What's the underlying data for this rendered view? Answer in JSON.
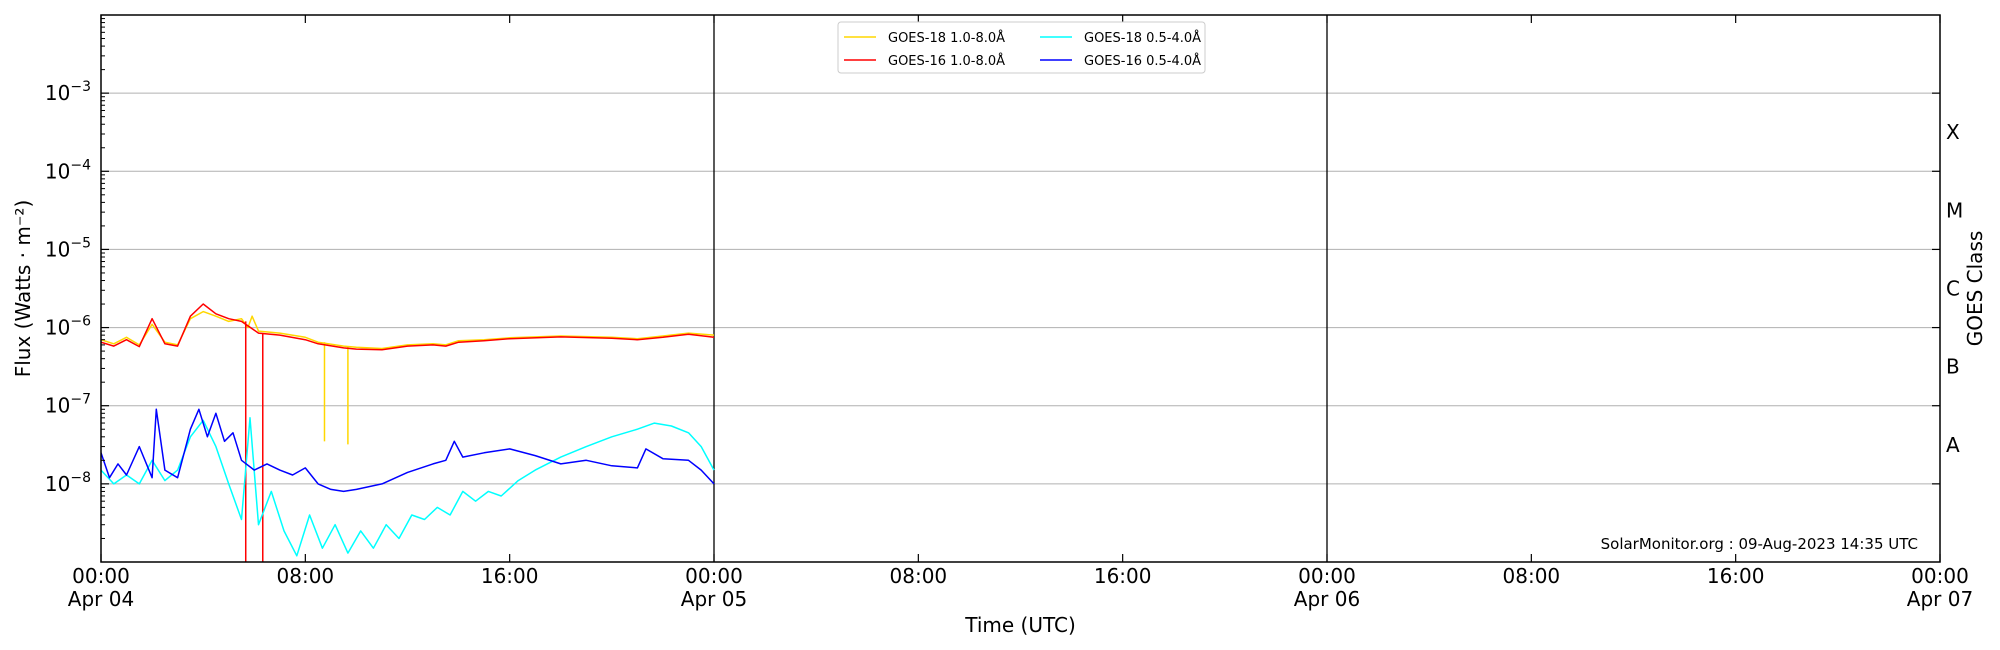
{
  "chart_data": {
    "type": "line",
    "xlabel": "Time (UTC)",
    "ylabel": "Flux (Watts · m⁻²)",
    "right_ylabel": "GOES Class",
    "yscale": "log",
    "ylim": [
      1e-09,
      0.01
    ],
    "xlim": [
      "2023-04-04 00:00",
      "2023-04-07 00:00"
    ],
    "grid": "horizontal",
    "legend_position": "top-center",
    "x_ticks": [
      {
        "time": "2023-04-04 00:00",
        "label": "00:00",
        "sublabel": "Apr 04"
      },
      {
        "time": "2023-04-04 08:00",
        "label": "08:00",
        "sublabel": ""
      },
      {
        "time": "2023-04-04 16:00",
        "label": "16:00",
        "sublabel": ""
      },
      {
        "time": "2023-04-05 00:00",
        "label": "00:00",
        "sublabel": "Apr 05"
      },
      {
        "time": "2023-04-05 08:00",
        "label": "08:00",
        "sublabel": ""
      },
      {
        "time": "2023-04-05 16:00",
        "label": "16:00",
        "sublabel": ""
      },
      {
        "time": "2023-04-06 00:00",
        "label": "00:00",
        "sublabel": "Apr 06"
      },
      {
        "time": "2023-04-06 08:00",
        "label": "08:00",
        "sublabel": ""
      },
      {
        "time": "2023-04-06 16:00",
        "label": "16:00",
        "sublabel": ""
      },
      {
        "time": "2023-04-07 00:00",
        "label": "00:00",
        "sublabel": "Apr 07"
      }
    ],
    "y_ticks": [
      {
        "value": 1e-08,
        "label": "10",
        "exp": "−8"
      },
      {
        "value": 1e-07,
        "label": "10",
        "exp": "−7"
      },
      {
        "value": 1e-06,
        "label": "10",
        "exp": "−6"
      },
      {
        "value": 1e-05,
        "label": "10",
        "exp": "−5"
      },
      {
        "value": 0.0001,
        "label": "10",
        "exp": "−4"
      },
      {
        "value": 0.001,
        "label": "10",
        "exp": "−3"
      }
    ],
    "goes_classes": [
      {
        "label": "A",
        "value": 3.16e-08
      },
      {
        "label": "B",
        "value": 3.16e-07
      },
      {
        "label": "C",
        "value": 3.16e-06
      },
      {
        "label": "M",
        "value": 3.16e-05
      },
      {
        "label": "X",
        "value": 0.000316
      }
    ],
    "day_boundaries": [
      "2023-04-05 00:00",
      "2023-04-06 00:00"
    ],
    "credit": "SolarMonitor.org : 09-Aug-2023 14:35 UTC",
    "series": [
      {
        "name": "GOES-18 1.0-8.0Å",
        "color": "#ffd700",
        "points": [
          [
            "2023-04-04 00:00",
            7e-07
          ],
          [
            "2023-04-04 00:30",
            6.2e-07
          ],
          [
            "2023-04-04 01:00",
            7.5e-07
          ],
          [
            "2023-04-04 01:30",
            6e-07
          ],
          [
            "2023-04-04 02:00",
            1.1e-06
          ],
          [
            "2023-04-04 02:30",
            6.5e-07
          ],
          [
            "2023-04-04 03:00",
            6e-07
          ],
          [
            "2023-04-04 03:30",
            1.3e-06
          ],
          [
            "2023-04-04 04:00",
            1.6e-06
          ],
          [
            "2023-04-04 04:30",
            1.4e-06
          ],
          [
            "2023-04-04 05:00",
            1.2e-06
          ],
          [
            "2023-04-04 05:30",
            1.3e-06
          ],
          [
            "2023-04-04 05:45",
            1e-06
          ],
          [
            "2023-04-04 05:55",
            1.4e-06
          ],
          [
            "2023-04-04 06:10",
            9e-07
          ],
          [
            "2023-04-04 07:00",
            8.5e-07
          ],
          [
            "2023-04-04 08:00",
            7.5e-07
          ],
          [
            "2023-04-04 08:30",
            6.5e-07
          ],
          [
            "2023-04-04 09:30",
            5.8e-07
          ],
          [
            "2023-04-04 10:00",
            5.6e-07
          ],
          [
            "2023-04-04 11:00",
            5.4e-07
          ],
          [
            "2023-04-04 12:00",
            6e-07
          ],
          [
            "2023-04-04 13:00",
            6.2e-07
          ],
          [
            "2023-04-04 13:30",
            6e-07
          ],
          [
            "2023-04-04 14:00",
            6.8e-07
          ],
          [
            "2023-04-04 15:00",
            7e-07
          ],
          [
            "2023-04-04 16:00",
            7.4e-07
          ],
          [
            "2023-04-04 18:00",
            7.8e-07
          ],
          [
            "2023-04-04 20:00",
            7.5e-07
          ],
          [
            "2023-04-04 21:00",
            7.2e-07
          ],
          [
            "2023-04-04 22:00",
            7.8e-07
          ],
          [
            "2023-04-04 23:00",
            8.5e-07
          ],
          [
            "2023-04-05 00:00",
            8e-07
          ]
        ],
        "dips": [
          [
            "2023-04-04 08:45",
            3.5e-08
          ],
          [
            "2023-04-04 09:40",
            3.2e-08
          ]
        ]
      },
      {
        "name": "GOES-16 1.0-8.0Å",
        "color": "#ff0000",
        "points": [
          [
            "2023-04-04 00:00",
            6.5e-07
          ],
          [
            "2023-04-04 00:30",
            5.8e-07
          ],
          [
            "2023-04-04 01:00",
            7e-07
          ],
          [
            "2023-04-04 01:30",
            5.7e-07
          ],
          [
            "2023-04-04 02:00",
            1.3e-06
          ],
          [
            "2023-04-04 02:30",
            6.2e-07
          ],
          [
            "2023-04-04 03:00",
            5.8e-07
          ],
          [
            "2023-04-04 03:30",
            1.4e-06
          ],
          [
            "2023-04-04 04:00",
            2e-06
          ],
          [
            "2023-04-04 04:30",
            1.5e-06
          ],
          [
            "2023-04-04 05:00",
            1.3e-06
          ],
          [
            "2023-04-04 05:30",
            1.2e-06
          ],
          [
            "2023-04-04 06:10",
            8.5e-07
          ],
          [
            "2023-04-04 07:00",
            8e-07
          ],
          [
            "2023-04-04 08:00",
            7e-07
          ],
          [
            "2023-04-04 08:30",
            6.2e-07
          ],
          [
            "2023-04-04 09:30",
            5.5e-07
          ],
          [
            "2023-04-04 10:00",
            5.3e-07
          ],
          [
            "2023-04-04 11:00",
            5.2e-07
          ],
          [
            "2023-04-04 12:00",
            5.8e-07
          ],
          [
            "2023-04-04 13:00",
            6e-07
          ],
          [
            "2023-04-04 13:30",
            5.8e-07
          ],
          [
            "2023-04-04 14:00",
            6.5e-07
          ],
          [
            "2023-04-04 15:00",
            6.8e-07
          ],
          [
            "2023-04-04 16:00",
            7.2e-07
          ],
          [
            "2023-04-04 18:00",
            7.6e-07
          ],
          [
            "2023-04-04 20:00",
            7.3e-07
          ],
          [
            "2023-04-04 21:00",
            7e-07
          ],
          [
            "2023-04-04 22:00",
            7.5e-07
          ],
          [
            "2023-04-04 23:00",
            8.2e-07
          ],
          [
            "2023-04-05 00:00",
            7.5e-07
          ]
        ],
        "dips": [
          [
            "2023-04-04 05:40",
            1e-09
          ],
          [
            "2023-04-04 06:20",
            1e-09
          ]
        ]
      },
      {
        "name": "GOES-18 0.5-4.0Å",
        "color": "#00ffff",
        "points": [
          [
            "2023-04-04 00:00",
            1.5e-08
          ],
          [
            "2023-04-04 00:30",
            1e-08
          ],
          [
            "2023-04-04 01:00",
            1.3e-08
          ],
          [
            "2023-04-04 01:30",
            1e-08
          ],
          [
            "2023-04-04 02:00",
            2e-08
          ],
          [
            "2023-04-04 02:30",
            1.1e-08
          ],
          [
            "2023-04-04 03:00",
            1.5e-08
          ],
          [
            "2023-04-04 03:30",
            4e-08
          ],
          [
            "2023-04-04 04:00",
            6.5e-08
          ],
          [
            "2023-04-04 04:30",
            3e-08
          ],
          [
            "2023-04-04 05:00",
            1e-08
          ],
          [
            "2023-04-04 05:30",
            3.5e-09
          ],
          [
            "2023-04-04 05:50",
            7e-08
          ],
          [
            "2023-04-04 06:10",
            3e-09
          ],
          [
            "2023-04-04 06:40",
            8e-09
          ],
          [
            "2023-04-04 07:10",
            2.5e-09
          ],
          [
            "2023-04-04 07:40",
            1.2e-09
          ],
          [
            "2023-04-04 08:10",
            4e-09
          ],
          [
            "2023-04-04 08:40",
            1.5e-09
          ],
          [
            "2023-04-04 09:10",
            3e-09
          ],
          [
            "2023-04-04 09:40",
            1.3e-09
          ],
          [
            "2023-04-04 10:10",
            2.5e-09
          ],
          [
            "2023-04-04 10:40",
            1.5e-09
          ],
          [
            "2023-04-04 11:10",
            3e-09
          ],
          [
            "2023-04-04 11:40",
            2e-09
          ],
          [
            "2023-04-04 12:10",
            4e-09
          ],
          [
            "2023-04-04 12:40",
            3.5e-09
          ],
          [
            "2023-04-04 13:10",
            5e-09
          ],
          [
            "2023-04-04 13:40",
            4e-09
          ],
          [
            "2023-04-04 14:10",
            8e-09
          ],
          [
            "2023-04-04 14:40",
            6e-09
          ],
          [
            "2023-04-04 15:10",
            8e-09
          ],
          [
            "2023-04-04 15:40",
            7e-09
          ],
          [
            "2023-04-04 16:20",
            1.1e-08
          ],
          [
            "2023-04-04 17:00",
            1.5e-08
          ],
          [
            "2023-04-04 18:00",
            2.2e-08
          ],
          [
            "2023-04-04 19:00",
            3e-08
          ],
          [
            "2023-04-04 20:00",
            4e-08
          ],
          [
            "2023-04-04 21:00",
            5e-08
          ],
          [
            "2023-04-04 21:40",
            6e-08
          ],
          [
            "2023-04-04 22:20",
            5.5e-08
          ],
          [
            "2023-04-04 23:00",
            4.5e-08
          ],
          [
            "2023-04-04 23:30",
            3e-08
          ],
          [
            "2023-04-05 00:00",
            1.5e-08
          ]
        ]
      },
      {
        "name": "GOES-16 0.5-4.0Å",
        "color": "#0000ff",
        "points": [
          [
            "2023-04-04 00:00",
            2.5e-08
          ],
          [
            "2023-04-04 00:20",
            1.2e-08
          ],
          [
            "2023-04-04 00:40",
            1.8e-08
          ],
          [
            "2023-04-04 01:00",
            1.3e-08
          ],
          [
            "2023-04-04 01:30",
            3e-08
          ],
          [
            "2023-04-04 02:00",
            1.2e-08
          ],
          [
            "2023-04-04 02:10",
            9e-08
          ],
          [
            "2023-04-04 02:30",
            1.5e-08
          ],
          [
            "2023-04-04 03:00",
            1.2e-08
          ],
          [
            "2023-04-04 03:30",
            5e-08
          ],
          [
            "2023-04-04 03:50",
            9e-08
          ],
          [
            "2023-04-04 04:10",
            4e-08
          ],
          [
            "2023-04-04 04:30",
            8e-08
          ],
          [
            "2023-04-04 04:50",
            3.5e-08
          ],
          [
            "2023-04-04 05:10",
            4.5e-08
          ],
          [
            "2023-04-04 05:30",
            2e-08
          ],
          [
            "2023-04-04 06:00",
            1.5e-08
          ],
          [
            "2023-04-04 06:30",
            1.8e-08
          ],
          [
            "2023-04-04 07:00",
            1.5e-08
          ],
          [
            "2023-04-04 07:30",
            1.3e-08
          ],
          [
            "2023-04-04 08:00",
            1.6e-08
          ],
          [
            "2023-04-04 08:30",
            1e-08
          ],
          [
            "2023-04-04 09:00",
            8.5e-09
          ],
          [
            "2023-04-04 09:30",
            8e-09
          ],
          [
            "2023-04-04 10:00",
            8.5e-09
          ],
          [
            "2023-04-04 11:00",
            1e-08
          ],
          [
            "2023-04-04 12:00",
            1.4e-08
          ],
          [
            "2023-04-04 13:00",
            1.8e-08
          ],
          [
            "2023-04-04 13:30",
            2e-08
          ],
          [
            "2023-04-04 13:50",
            3.5e-08
          ],
          [
            "2023-04-04 14:10",
            2.2e-08
          ],
          [
            "2023-04-04 15:00",
            2.5e-08
          ],
          [
            "2023-04-04 16:00",
            2.8e-08
          ],
          [
            "2023-04-04 17:00",
            2.3e-08
          ],
          [
            "2023-04-04 18:00",
            1.8e-08
          ],
          [
            "2023-04-04 19:00",
            2e-08
          ],
          [
            "2023-04-04 20:00",
            1.7e-08
          ],
          [
            "2023-04-04 21:00",
            1.6e-08
          ],
          [
            "2023-04-04 21:20",
            2.8e-08
          ],
          [
            "2023-04-04 22:00",
            2.1e-08
          ],
          [
            "2023-04-04 23:00",
            2e-08
          ],
          [
            "2023-04-04 23:30",
            1.5e-08
          ],
          [
            "2023-04-05 00:00",
            1e-08
          ]
        ]
      }
    ]
  }
}
